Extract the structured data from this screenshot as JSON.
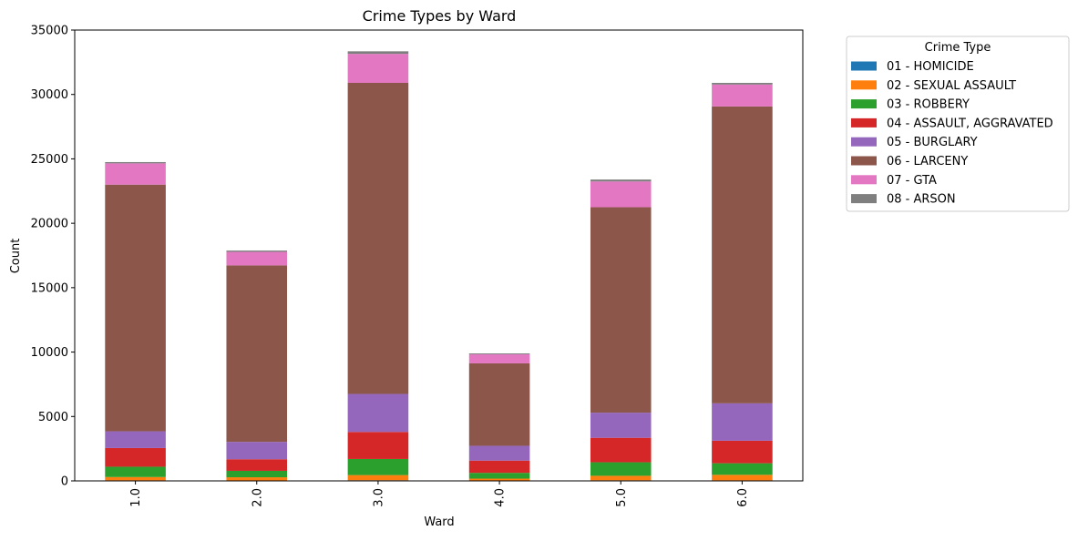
{
  "chart_data": {
    "type": "bar",
    "stacked": true,
    "title": "Crime Types by Ward",
    "xlabel": "Ward",
    "ylabel": "Count",
    "ylim": [
      0,
      35000
    ],
    "yticks": [
      "0",
      "5000",
      "10000",
      "15000",
      "20000",
      "25000",
      "30000",
      "35000"
    ],
    "categories": [
      "1.0",
      "2.0",
      "3.0",
      "4.0",
      "5.0",
      "6.0"
    ],
    "grid": false,
    "legend": {
      "title": "Crime Type",
      "placement": "outside-right"
    },
    "series": [
      {
        "name": "01 - HOMICIDE",
        "color": "#1f77b4",
        "values": [
          40,
          30,
          50,
          25,
          45,
          40
        ]
      },
      {
        "name": "02 - SEXUAL ASSAULT",
        "color": "#ff7f0e",
        "values": [
          260,
          250,
          400,
          150,
          350,
          430
        ]
      },
      {
        "name": "03 - ROBBERY",
        "color": "#2ca02c",
        "values": [
          800,
          500,
          1250,
          450,
          1050,
          900
        ]
      },
      {
        "name": "04 - ASSAULT, AGGRAVATED",
        "color": "#d62728",
        "values": [
          1450,
          900,
          2100,
          950,
          1900,
          1750
        ]
      },
      {
        "name": "05 - BURGLARY",
        "color": "#9467bd",
        "values": [
          1300,
          1350,
          2950,
          1150,
          1950,
          2900
        ]
      },
      {
        "name": "06 - LARCENY",
        "color": "#8c564b",
        "values": [
          19150,
          13700,
          24150,
          6400,
          15950,
          23050
        ]
      },
      {
        "name": "07 - GTA",
        "color": "#e377c2",
        "values": [
          1650,
          1050,
          2250,
          700,
          2000,
          1700
        ]
      },
      {
        "name": "08 - ARSON",
        "color": "#7f7f7f",
        "values": [
          100,
          100,
          200,
          70,
          150,
          130
        ]
      }
    ]
  }
}
